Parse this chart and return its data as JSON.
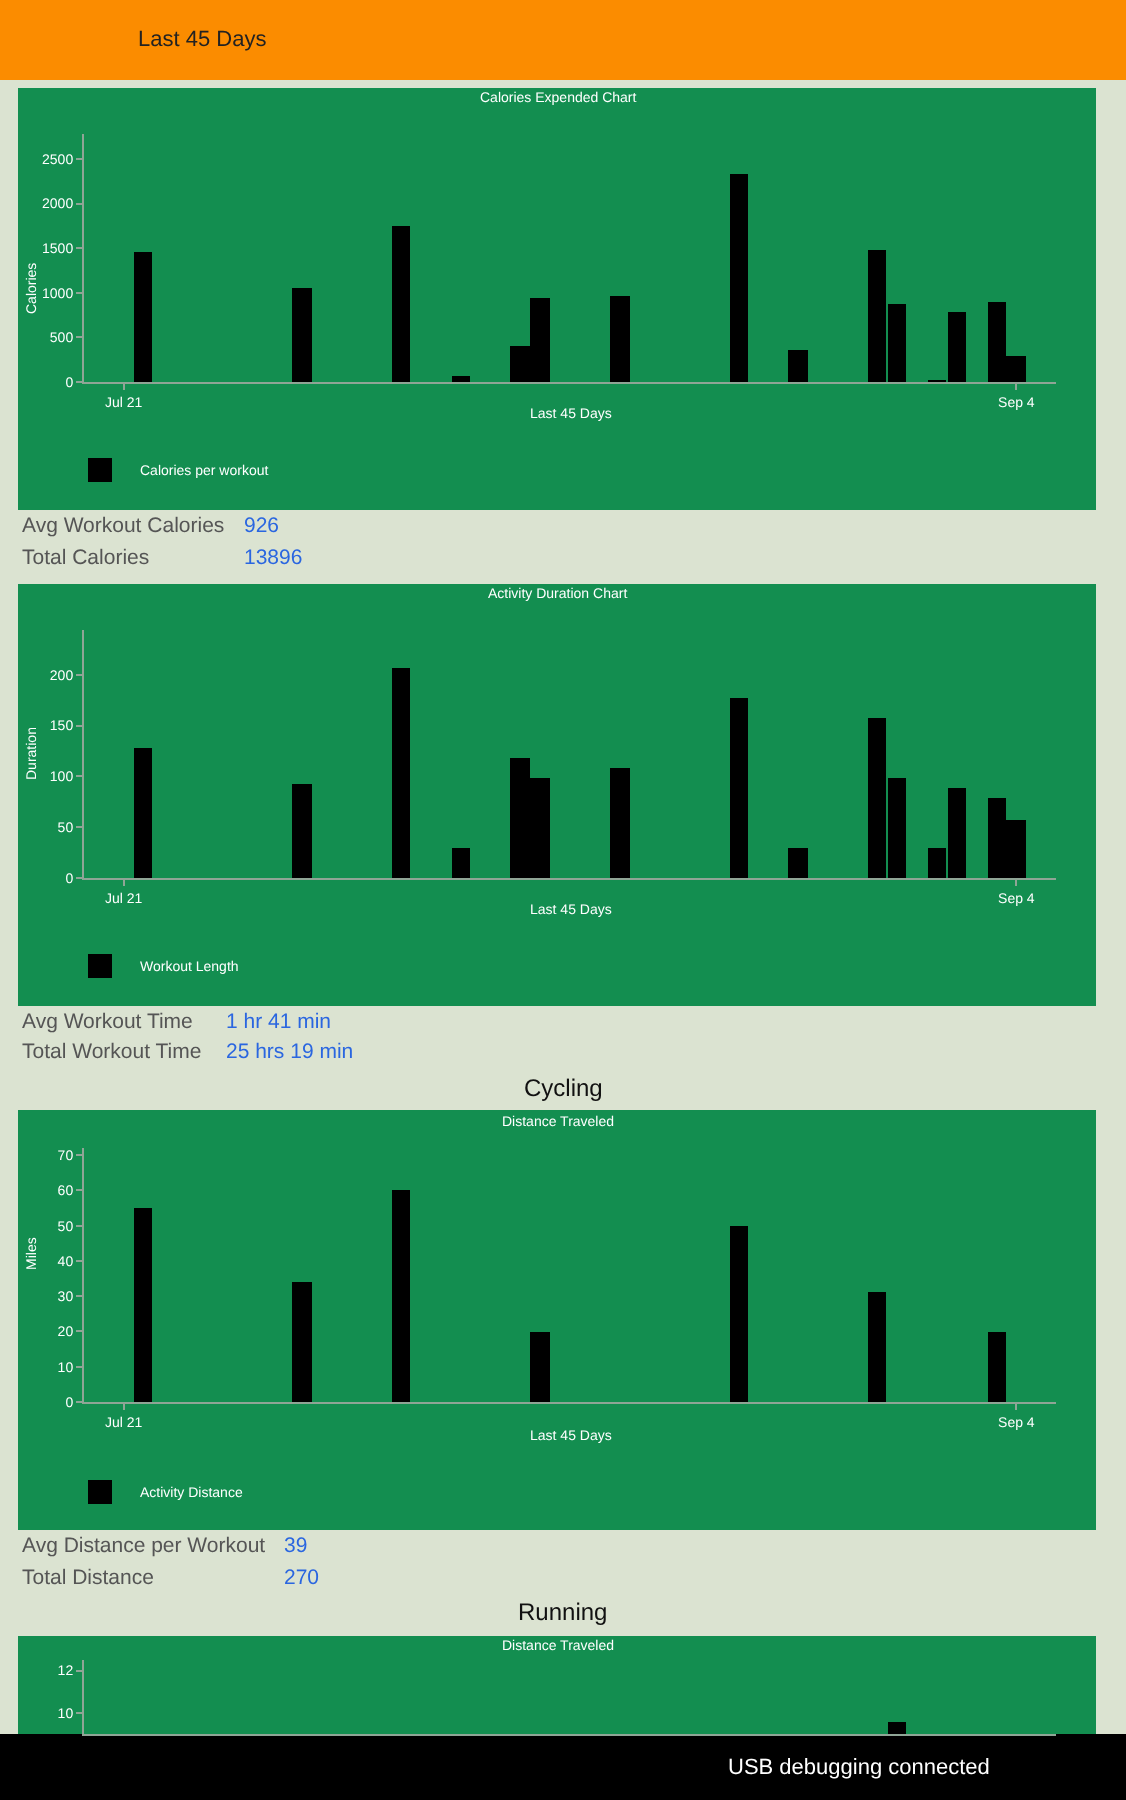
{
  "chart_data": [
    {
      "type": "other",
      "title": "Last 45 Days"
    },
    {
      "type": "bar",
      "title": "Calories Expended Chart",
      "xlabel": "Last 45 Days",
      "ylabel": "Calories",
      "x": [
        "--07-22",
        "--07-30",
        "--08-04",
        "--08-07",
        "--08-10",
        "--08-11",
        "--08-15",
        "--08-21",
        "--08-24",
        "--08-28",
        "--08-29",
        "--08-31",
        "--09-01",
        "--09-03",
        "--09-04"
      ],
      "series": [
        {
          "name": "Calories per workout",
          "color": "#000000",
          "values": [
            1450,
            1050,
            1750,
            70,
            400,
            940,
            960,
            2330,
            360,
            1490,
            880,
            20,
            780,
            900,
            300
          ]
        }
      ],
      "xlim": [
        "--07-19",
        "--09-06"
      ],
      "xticks": [
        {
          "value": "--07-21",
          "label": "Jul 21"
        },
        {
          "value": "--09-04",
          "label": "Sep 4"
        }
      ],
      "ylim": [
        0,
        2780
      ],
      "yticks": [
        0,
        500,
        1000,
        1500,
        2000,
        2500
      ],
      "grid": false,
      "legend": "bottom left",
      "annotations": [
        "Avg Workout Calories",
        "926",
        "Total Calories",
        "13896"
      ]
    },
    {
      "type": "bar",
      "title": "Activity Duration Chart",
      "xlabel": "Last 45 Days",
      "ylabel": "Duration",
      "x": [
        "--07-22",
        "--07-30",
        "--08-04",
        "--08-07",
        "--08-10",
        "--08-11",
        "--08-15",
        "--08-21",
        "--08-24",
        "--08-28",
        "--08-29",
        "--08-31",
        "--09-01",
        "--09-03",
        "--09-04"
      ],
      "series": [
        {
          "name": "Workout Length",
          "color": "#000000",
          "values": [
            128,
            92,
            206,
            30,
            119,
            98,
            108,
            177,
            30,
            158,
            99,
            30,
            89,
            79,
            58
          ]
        }
      ],
      "xlim": [
        "--07-19",
        "--09-06"
      ],
      "xticks": [
        {
          "value": "--07-21",
          "label": "Jul 21"
        },
        {
          "value": "--09-04",
          "label": "Sep 4"
        }
      ],
      "ylim": [
        0,
        244
      ],
      "yticks": [
        0,
        50,
        100,
        150,
        200
      ],
      "grid": false,
      "legend": "bottom left",
      "annotations": [
        "Avg Workout Time",
        "1 hr 41 min",
        "Total Workout Time",
        "25 hrs 19 min"
      ]
    },
    {
      "type": "bar",
      "title": "Distance Traveled",
      "xlabel": "Last 45 Days",
      "ylabel": "Miles",
      "x": [
        "--07-22",
        "--07-30",
        "--08-04",
        "--08-11",
        "--08-21",
        "--08-28",
        "--09-03"
      ],
      "series": [
        {
          "name": "Activity Distance",
          "color": "#000000",
          "values": [
            55,
            34,
            60,
            20,
            50,
            31,
            20
          ]
        }
      ],
      "xlim": [
        "--07-19",
        "--09-06"
      ],
      "xticks": [
        {
          "value": "--07-21",
          "label": "Jul 21"
        },
        {
          "value": "--09-04",
          "label": "Sep 4"
        }
      ],
      "ylim": [
        0,
        72
      ],
      "yticks": [
        0,
        10,
        20,
        30,
        40,
        50,
        60,
        70
      ],
      "grid": false,
      "legend": "bottom left",
      "annotations": [
        "Cycling",
        "Avg Distance per Workout",
        "39",
        "Total Distance",
        "270"
      ]
    },
    {
      "type": "bar",
      "title": "Distance Traveled",
      "x": [
        "--08-29"
      ],
      "series": [
        {
          "color": "#000000",
          "values": [
            9.6
          ]
        }
      ],
      "xlim": [
        "--07-19",
        "--09-06"
      ],
      "ylim": [
        9,
        12.5
      ],
      "yticks": [
        10,
        12
      ],
      "grid": false,
      "tick_labels": "y",
      "annotations": [
        "Running"
      ]
    },
    {
      "type": "other",
      "title": "USB debugging connected"
    }
  ]
}
